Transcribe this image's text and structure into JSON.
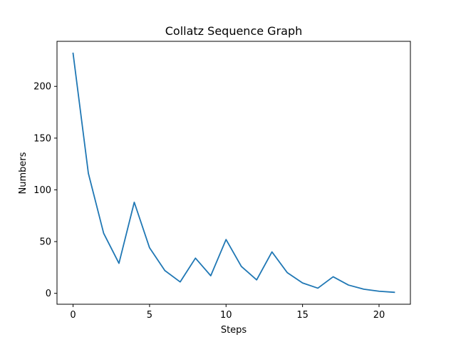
{
  "chart_data": {
    "type": "line",
    "title": "Collatz Sequence Graph",
    "xlabel": "Steps",
    "ylabel": "Numbers",
    "xlim": [
      -1.05,
      22.05
    ],
    "ylim": [
      -10.55,
      243.55
    ],
    "xticks": [
      0,
      5,
      10,
      15,
      20
    ],
    "yticks": [
      0,
      50,
      100,
      150,
      200
    ],
    "grid": false,
    "series": [
      {
        "color": "#1f77b4",
        "x": [
          0,
          1,
          2,
          3,
          4,
          5,
          6,
          7,
          8,
          9,
          10,
          11,
          12,
          13,
          14,
          15,
          16,
          17,
          18,
          19,
          20,
          21
        ],
        "y": [
          232,
          116,
          58,
          29,
          88,
          44,
          22,
          11,
          34,
          17,
          52,
          26,
          13,
          40,
          20,
          10,
          5,
          16,
          8,
          4,
          2,
          1
        ]
      }
    ]
  }
}
